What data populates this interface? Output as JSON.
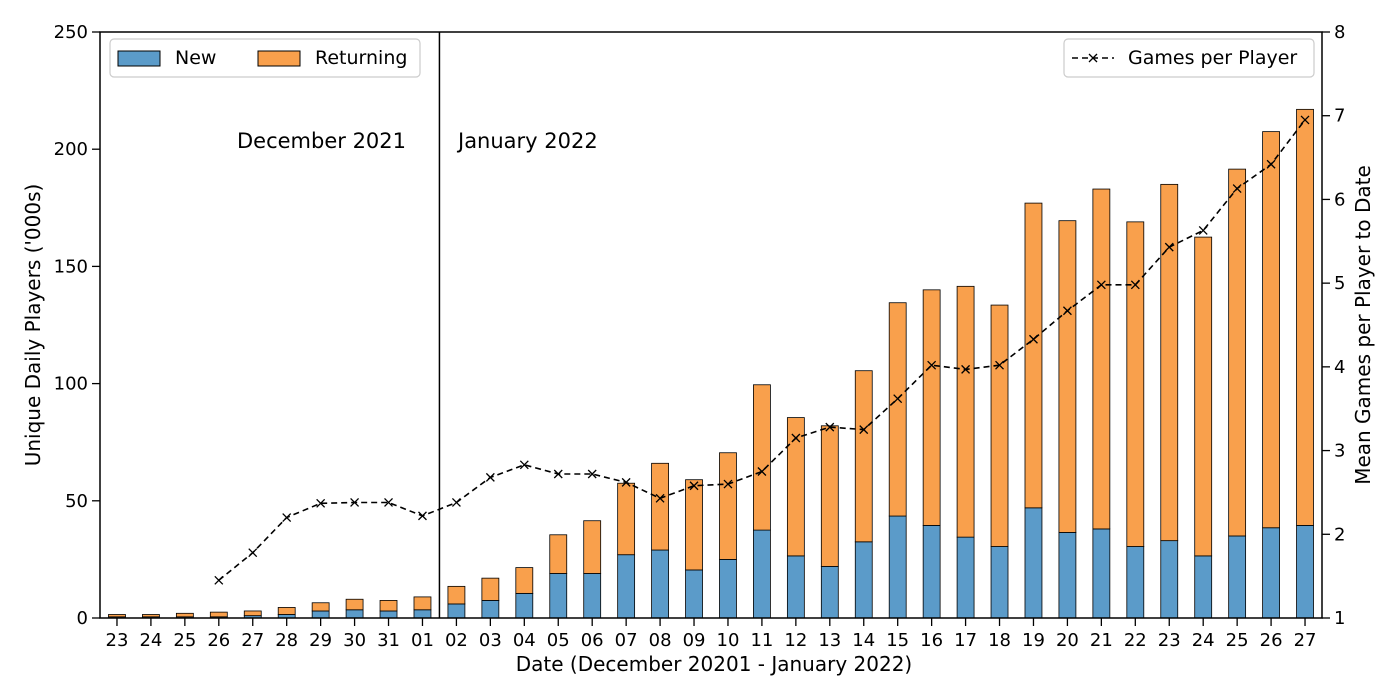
{
  "chart_data": {
    "type": "bar",
    "stacked": true,
    "xlabel": "Date (December 20201 - January 2022)",
    "ylabel": "Unique Daily Players ('000s)",
    "y2label": "Mean Games per Player to Date",
    "ylim": [
      0,
      250
    ],
    "y2lim": [
      1,
      8
    ],
    "yticks": [
      0,
      50,
      100,
      150,
      200,
      250
    ],
    "y2ticks": [
      1,
      2,
      3,
      4,
      5,
      6,
      7,
      8
    ],
    "grid": false,
    "categories": [
      "23",
      "24",
      "25",
      "26",
      "27",
      "28",
      "29",
      "30",
      "31",
      "01",
      "02",
      "03",
      "04",
      "05",
      "06",
      "07",
      "08",
      "09",
      "10",
      "11",
      "12",
      "13",
      "14",
      "15",
      "16",
      "17",
      "18",
      "19",
      "20",
      "21",
      "22",
      "23",
      "24",
      "25",
      "26",
      "27"
    ],
    "series": [
      {
        "name": "New",
        "color": "#5b9bc9",
        "values": [
          0.5,
          0.5,
          0.5,
          0.5,
          1,
          1.5,
          3,
          3.5,
          3,
          3.5,
          6,
          7.5,
          10.5,
          19,
          19,
          27,
          29,
          20.5,
          25,
          37.5,
          26.5,
          22,
          32.5,
          43.5,
          39.5,
          34.5,
          30.5,
          47,
          36.5,
          38,
          30.5,
          33,
          26.5,
          35,
          38.5,
          39.5
        ]
      },
      {
        "name": "Returning",
        "color": "#f9a04c",
        "values": [
          1,
          1,
          1.5,
          2,
          2,
          3,
          3.5,
          4.5,
          4.5,
          5.5,
          7.5,
          9.5,
          11,
          16.5,
          22.5,
          30.5,
          37,
          38.5,
          45.5,
          62,
          59,
          60,
          73,
          91,
          100.5,
          107,
          103,
          130,
          133,
          145,
          138.5,
          152,
          136,
          156.5,
          169,
          177.5
        ]
      }
    ],
    "line": {
      "name": "Games per Player",
      "axis": "right",
      "style": "dashed",
      "marker": "x",
      "values": [
        null,
        null,
        null,
        1.45,
        1.78,
        2.2,
        2.37,
        2.38,
        2.38,
        2.22,
        2.38,
        2.68,
        2.83,
        2.72,
        2.72,
        2.62,
        2.43,
        2.58,
        2.6,
        2.75,
        3.15,
        3.28,
        3.25,
        3.62,
        4.02,
        3.97,
        4.02,
        4.33,
        4.67,
        4.98,
        4.98,
        5.43,
        5.63,
        6.13,
        6.42,
        6.95
      ]
    },
    "divider_after_index": 9,
    "annotations": [
      "December 2021",
      "January 2022"
    ],
    "legends": [
      {
        "placement": "top-left",
        "entries": [
          "New",
          "Returning"
        ]
      },
      {
        "placement": "top-right",
        "entries": [
          "Games per Player"
        ]
      }
    ]
  }
}
